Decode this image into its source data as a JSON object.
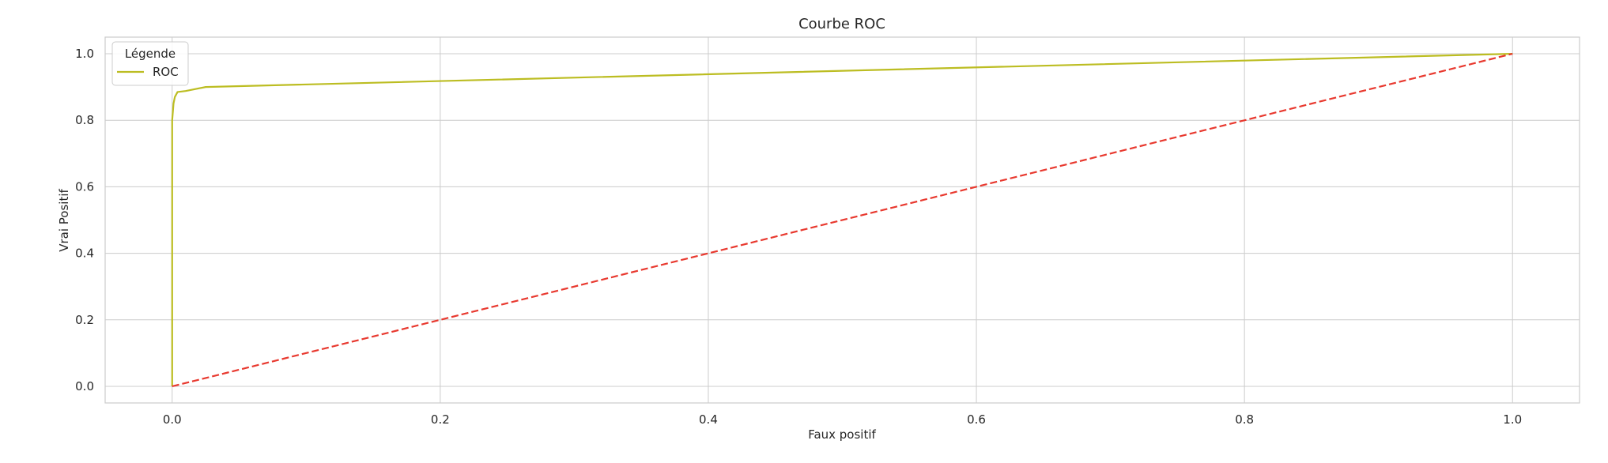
{
  "chart_data": {
    "type": "line",
    "title": "Courbe ROC",
    "xlabel": "Faux positif",
    "ylabel": "Vrai Positif",
    "xlim": [
      -0.05,
      1.05
    ],
    "ylim": [
      -0.05,
      1.05
    ],
    "xticks": [
      0.0,
      0.2,
      0.4,
      0.6,
      0.8,
      1.0
    ],
    "yticks": [
      0.0,
      0.2,
      0.4,
      0.6,
      0.8,
      1.0
    ],
    "xtick_labels": [
      "0.0",
      "0.2",
      "0.4",
      "0.6",
      "0.8",
      "1.0"
    ],
    "ytick_labels": [
      "0.0",
      "0.2",
      "0.4",
      "0.6",
      "0.8",
      "1.0"
    ],
    "grid": true,
    "legend": {
      "title": "Légende",
      "placement": "top-left"
    },
    "series": [
      {
        "name": "ROC",
        "color": "#bcbd22",
        "style": "solid",
        "in_legend": true,
        "points": [
          [
            0.0,
            0.0
          ],
          [
            0.0,
            0.6
          ],
          [
            0.0,
            0.8
          ],
          [
            0.001,
            0.85
          ],
          [
            0.002,
            0.87
          ],
          [
            0.004,
            0.885
          ],
          [
            0.01,
            0.888
          ],
          [
            0.025,
            0.9
          ],
          [
            1.0,
            1.0
          ]
        ]
      },
      {
        "name": "",
        "color": "#e8392f",
        "style": "dashed",
        "in_legend": false,
        "points": [
          [
            0.0,
            0.0
          ],
          [
            1.0,
            1.0
          ]
        ]
      }
    ]
  }
}
